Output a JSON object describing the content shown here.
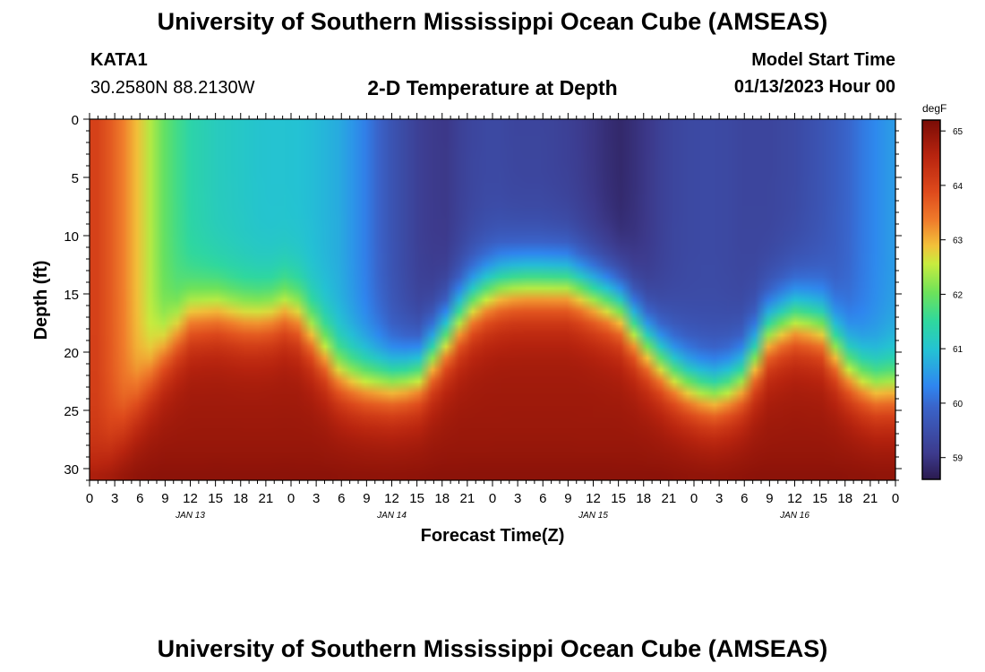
{
  "header": {
    "title": "University of Southern Mississippi Ocean Cube (AMSEAS)",
    "station_id": "KATA1",
    "station_coords": "30.2580N  88.2130W",
    "chart_title": "2-D Temperature at Depth",
    "model_label": "Model Start Time",
    "model_time": "01/13/2023 Hour 00"
  },
  "footer": {
    "title": "University of Southern Mississippi Ocean Cube (AMSEAS)"
  },
  "chart_data": {
    "type": "heatmap",
    "title": "2-D Temperature at Depth",
    "xlabel": "Forecast Time(Z)",
    "ylabel": "Depth (ft)",
    "units": "degF",
    "x_hours_range": [
      0,
      96
    ],
    "ylim": [
      0,
      31
    ],
    "y_ticks": [
      0,
      5,
      10,
      15,
      20,
      25,
      30
    ],
    "x_tick_labels": [
      "0",
      "3",
      "6",
      "9",
      "12",
      "15",
      "18",
      "21",
      "0",
      "3",
      "6",
      "9",
      "12",
      "15",
      "18",
      "21",
      "0",
      "3",
      "6",
      "9",
      "12",
      "15",
      "18",
      "21",
      "0",
      "3",
      "6",
      "9",
      "12",
      "15",
      "18",
      "21",
      "0"
    ],
    "date_labels": [
      {
        "hour": 12,
        "label": "JAN 13"
      },
      {
        "hour": 36,
        "label": "JAN 14"
      },
      {
        "hour": 60,
        "label": "JAN 15"
      },
      {
        "hour": 84,
        "label": "JAN 16"
      }
    ],
    "colorbar": {
      "min": 58.6,
      "max": 65.2,
      "ticks": [
        59,
        60,
        61,
        62,
        63,
        64,
        65
      ]
    },
    "thermocline_hours": [
      0,
      3,
      6,
      9,
      12,
      15,
      18,
      21,
      24,
      27,
      30,
      33,
      36,
      39,
      42,
      45,
      48,
      51,
      54,
      57,
      60,
      63,
      66,
      69,
      72,
      75,
      78,
      81,
      84,
      87,
      90,
      93,
      96
    ],
    "thermocline_depth_ft": [
      31,
      28,
      24,
      20,
      17,
      16.5,
      17,
      17,
      16,
      19,
      22,
      22.5,
      22.5,
      22,
      19,
      16,
      14.5,
      14,
      14,
      14,
      15,
      16,
      19,
      21.5,
      23,
      23.5,
      22,
      18,
      17,
      17.5,
      21,
      23,
      23
    ],
    "upper_layer_hours": [
      0,
      3,
      6,
      9,
      12,
      15,
      18,
      21,
      24,
      27,
      30,
      33,
      36,
      39,
      42,
      45,
      48,
      51,
      54,
      57,
      60,
      63,
      66,
      69,
      72,
      75,
      78,
      81,
      84,
      87,
      90,
      93,
      96
    ],
    "upper_layer_degF": [
      64.2,
      63.6,
      62.8,
      61.9,
      61.4,
      61.2,
      61.1,
      61.0,
      61.0,
      60.9,
      60.7,
      60.2,
      59.6,
      59.2,
      59.0,
      59.3,
      59.4,
      59.3,
      59.3,
      59.2,
      59.0,
      58.8,
      59.0,
      59.3,
      59.4,
      59.4,
      59.3,
      59.3,
      59.4,
      59.6,
      59.9,
      60.3,
      60.6
    ],
    "bottom_degF": 64.8
  }
}
